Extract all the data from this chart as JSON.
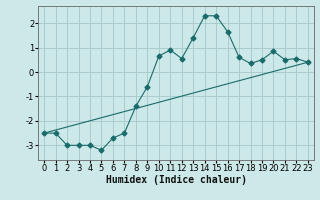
{
  "title": "",
  "xlabel": "Humidex (Indice chaleur)",
  "ylabel": "",
  "bg_color": "#cce8e8",
  "grid_color": "#aacccc",
  "line_color": "#1a6b6b",
  "xlim": [
    -0.5,
    23.5
  ],
  "ylim": [
    -3.6,
    2.7
  ],
  "yticks": [
    -3,
    -2,
    -1,
    0,
    1,
    2
  ],
  "xticks": [
    0,
    1,
    2,
    3,
    4,
    5,
    6,
    7,
    8,
    9,
    10,
    11,
    12,
    13,
    14,
    15,
    16,
    17,
    18,
    19,
    20,
    21,
    22,
    23
  ],
  "curve1_x": [
    0,
    1,
    2,
    3,
    4,
    5,
    6,
    7,
    8,
    9,
    10,
    11,
    12,
    13,
    14,
    15,
    16,
    17,
    18,
    19,
    20,
    21,
    22,
    23
  ],
  "curve1_y": [
    -2.5,
    -2.5,
    -3.0,
    -3.0,
    -3.0,
    -3.2,
    -2.7,
    -2.5,
    -1.4,
    -0.6,
    0.65,
    0.9,
    0.55,
    1.4,
    2.3,
    2.3,
    1.65,
    0.6,
    0.35,
    0.5,
    0.85,
    0.5,
    0.55,
    0.4
  ],
  "curve2_x": [
    0,
    23
  ],
  "curve2_y": [
    -2.5,
    0.4
  ],
  "marker": "D",
  "markersize": 2.5,
  "tick_fontsize": 6,
  "xlabel_fontsize": 7
}
